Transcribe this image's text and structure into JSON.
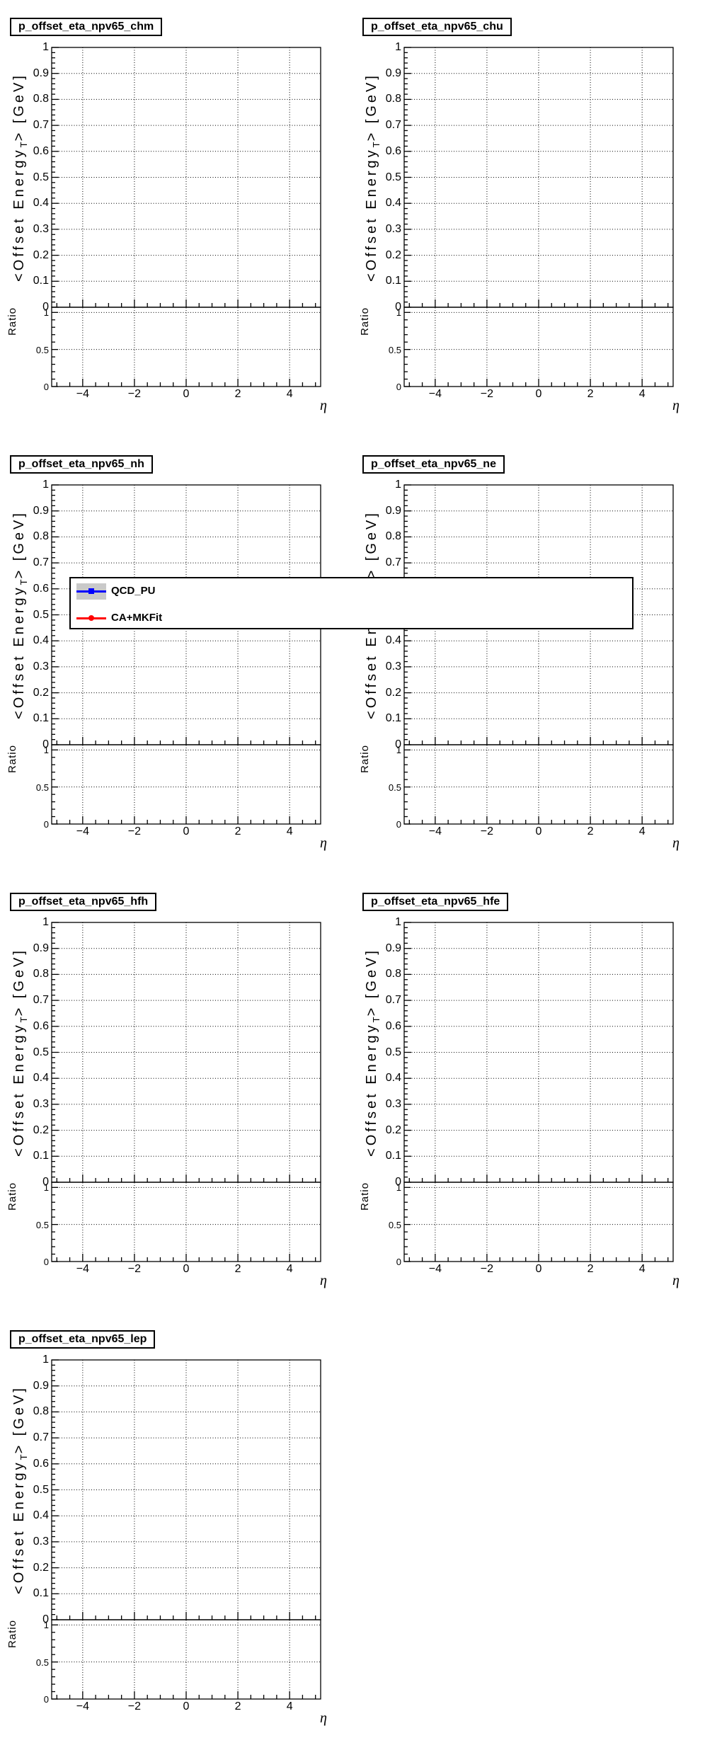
{
  "axis_titles": {
    "ylabel_pre": "<Offset Energy",
    "ylabel_sub": "T",
    "ylabel_post": "> [GeV]",
    "ratio_label": "Ratio",
    "xlabel": "η"
  },
  "legend": {
    "entries": [
      {
        "label": "QCD_PU",
        "line_color": "#0000ff",
        "marker": "square",
        "band": true,
        "band_color": "#c9c9c9"
      },
      {
        "label": "CA+MKFit",
        "line_color": "#ff0000",
        "marker": "circle",
        "band": false,
        "band_color": null
      }
    ]
  },
  "chart_data": [
    {
      "type": "line",
      "title": "p_offset_eta_npv65_chm",
      "xlabel": "η",
      "ylabel": "<Offset Energy_T> [GeV]",
      "ratio_label": "Ratio",
      "xlim": [
        -5.2,
        5.2
      ],
      "ylim": [
        0,
        1
      ],
      "grid": true,
      "xticks": [
        -4,
        -2,
        0,
        2,
        4
      ],
      "xtick_labels": [
        "−4",
        "−2",
        "0",
        "2",
        "4"
      ],
      "x_minor_step": 0.5,
      "yticks": [
        0,
        0.1,
        0.2,
        0.3,
        0.4,
        0.5,
        0.6,
        0.7,
        0.8,
        0.9,
        1
      ],
      "ytick_labels": [
        "0",
        "0.1",
        "0.2",
        "0.3",
        "0.4",
        "0.5",
        "0.6",
        "0.7",
        "0.8",
        "0.9",
        "1"
      ],
      "y_minor_step": 0.02,
      "ratio": {
        "ylim": [
          0,
          1.07
        ],
        "yticks": [
          0,
          0.5,
          1
        ],
        "ytick_labels": [
          "0",
          "0.5",
          "1"
        ],
        "minor_step": 0.1,
        "gridlines": [
          0.5,
          1
        ]
      },
      "series": [
        {
          "name": "QCD_PU",
          "color": "#0000ff",
          "marker": "square",
          "band_color": "#c9c9c9",
          "points": []
        },
        {
          "name": "CA+MKFit",
          "color": "#ff0000",
          "marker": "circle",
          "points": []
        }
      ]
    },
    {
      "type": "line",
      "title": "p_offset_eta_npv65_chu",
      "xlabel": "η",
      "ylabel": "<Offset Energy_T> [GeV]",
      "ratio_label": "Ratio",
      "xlim": [
        -5.2,
        5.2
      ],
      "ylim": [
        0,
        1
      ],
      "grid": true,
      "xticks": [
        -4,
        -2,
        0,
        2,
        4
      ],
      "xtick_labels": [
        "−4",
        "−2",
        "0",
        "2",
        "4"
      ],
      "x_minor_step": 0.5,
      "yticks": [
        0,
        0.1,
        0.2,
        0.3,
        0.4,
        0.5,
        0.6,
        0.7,
        0.8,
        0.9,
        1
      ],
      "ytick_labels": [
        "0",
        "0.1",
        "0.2",
        "0.3",
        "0.4",
        "0.5",
        "0.6",
        "0.7",
        "0.8",
        "0.9",
        "1"
      ],
      "y_minor_step": 0.02,
      "ratio": {
        "ylim": [
          0,
          1.07
        ],
        "yticks": [
          0,
          0.5,
          1
        ],
        "ytick_labels": [
          "0",
          "0.5",
          "1"
        ],
        "minor_step": 0.1,
        "gridlines": [
          0.5,
          1
        ]
      },
      "series": [
        {
          "name": "QCD_PU",
          "color": "#0000ff",
          "marker": "square",
          "band_color": "#c9c9c9",
          "points": []
        },
        {
          "name": "CA+MKFit",
          "color": "#ff0000",
          "marker": "circle",
          "points": []
        }
      ]
    },
    {
      "type": "line",
      "title": "p_offset_eta_npv65_nh",
      "xlabel": "η",
      "ylabel": "<Offset Energy_T> [GeV]",
      "ratio_label": "Ratio",
      "xlim": [
        -5.2,
        5.2
      ],
      "ylim": [
        0,
        1
      ],
      "grid": true,
      "xticks": [
        -4,
        -2,
        0,
        2,
        4
      ],
      "xtick_labels": [
        "−4",
        "−2",
        "0",
        "2",
        "4"
      ],
      "x_minor_step": 0.5,
      "yticks": [
        0,
        0.1,
        0.2,
        0.3,
        0.4,
        0.5,
        0.6,
        0.7,
        0.8,
        0.9,
        1
      ],
      "ytick_labels": [
        "0",
        "0.1",
        "0.2",
        "0.3",
        "0.4",
        "0.5",
        "0.6",
        "0.7",
        "0.8",
        "0.9",
        "1"
      ],
      "y_minor_step": 0.02,
      "ratio": {
        "ylim": [
          0,
          1.07
        ],
        "yticks": [
          0,
          0.5,
          1
        ],
        "ytick_labels": [
          "0",
          "0.5",
          "1"
        ],
        "minor_step": 0.1,
        "gridlines": [
          0.5,
          1
        ]
      },
      "series": [
        {
          "name": "QCD_PU",
          "color": "#0000ff",
          "marker": "square",
          "band_color": "#c9c9c9",
          "points": []
        },
        {
          "name": "CA+MKFit",
          "color": "#ff0000",
          "marker": "circle",
          "points": []
        }
      ]
    },
    {
      "type": "line",
      "title": "p_offset_eta_npv65_ne",
      "xlabel": "η",
      "ylabel": "<Offset Energy_T> [GeV]",
      "ratio_label": "Ratio",
      "xlim": [
        -5.2,
        5.2
      ],
      "ylim": [
        0,
        1
      ],
      "grid": true,
      "xticks": [
        -4,
        -2,
        0,
        2,
        4
      ],
      "xtick_labels": [
        "−4",
        "−2",
        "0",
        "2",
        "4"
      ],
      "x_minor_step": 0.5,
      "yticks": [
        0,
        0.1,
        0.2,
        0.3,
        0.4,
        0.5,
        0.6,
        0.7,
        0.8,
        0.9,
        1
      ],
      "ytick_labels": [
        "0",
        "0.1",
        "0.2",
        "0.3",
        "0.4",
        "0.5",
        "0.6",
        "0.7",
        "0.8",
        "0.9",
        "1"
      ],
      "y_minor_step": 0.02,
      "ratio": {
        "ylim": [
          0,
          1.07
        ],
        "yticks": [
          0,
          0.5,
          1
        ],
        "ytick_labels": [
          "0",
          "0.5",
          "1"
        ],
        "minor_step": 0.1,
        "gridlines": [
          0.5,
          1
        ]
      },
      "series": [
        {
          "name": "QCD_PU",
          "color": "#0000ff",
          "marker": "square",
          "band_color": "#c9c9c9",
          "points": []
        },
        {
          "name": "CA+MKFit",
          "color": "#ff0000",
          "marker": "circle",
          "points": []
        }
      ]
    },
    {
      "type": "line",
      "title": "p_offset_eta_npv65_hfh",
      "xlabel": "η",
      "ylabel": "<Offset Energy_T> [GeV]",
      "ratio_label": "Ratio",
      "xlim": [
        -5.2,
        5.2
      ],
      "ylim": [
        0,
        1
      ],
      "grid": true,
      "xticks": [
        -4,
        -2,
        0,
        2,
        4
      ],
      "xtick_labels": [
        "−4",
        "−2",
        "0",
        "2",
        "4"
      ],
      "x_minor_step": 0.5,
      "yticks": [
        0,
        0.1,
        0.2,
        0.3,
        0.4,
        0.5,
        0.6,
        0.7,
        0.8,
        0.9,
        1
      ],
      "ytick_labels": [
        "0",
        "0.1",
        "0.2",
        "0.3",
        "0.4",
        "0.5",
        "0.6",
        "0.7",
        "0.8",
        "0.9",
        "1"
      ],
      "y_minor_step": 0.02,
      "ratio": {
        "ylim": [
          0,
          1.07
        ],
        "yticks": [
          0,
          0.5,
          1
        ],
        "ytick_labels": [
          "0",
          "0.5",
          "1"
        ],
        "minor_step": 0.1,
        "gridlines": [
          0.5,
          1
        ]
      },
      "series": [
        {
          "name": "QCD_PU",
          "color": "#0000ff",
          "marker": "square",
          "band_color": "#c9c9c9",
          "points": []
        },
        {
          "name": "CA+MKFit",
          "color": "#ff0000",
          "marker": "circle",
          "points": []
        }
      ]
    },
    {
      "type": "line",
      "title": "p_offset_eta_npv65_hfe",
      "xlabel": "η",
      "ylabel": "<Offset Energy_T> [GeV]",
      "ratio_label": "Ratio",
      "xlim": [
        -5.2,
        5.2
      ],
      "ylim": [
        0,
        1
      ],
      "grid": true,
      "xticks": [
        -4,
        -2,
        0,
        2,
        4
      ],
      "xtick_labels": [
        "−4",
        "−2",
        "0",
        "2",
        "4"
      ],
      "x_minor_step": 0.5,
      "yticks": [
        0,
        0.1,
        0.2,
        0.3,
        0.4,
        0.5,
        0.6,
        0.7,
        0.8,
        0.9,
        1
      ],
      "ytick_labels": [
        "0",
        "0.1",
        "0.2",
        "0.3",
        "0.4",
        "0.5",
        "0.6",
        "0.7",
        "0.8",
        "0.9",
        "1"
      ],
      "y_minor_step": 0.02,
      "ratio": {
        "ylim": [
          0,
          1.07
        ],
        "yticks": [
          0,
          0.5,
          1
        ],
        "ytick_labels": [
          "0",
          "0.5",
          "1"
        ],
        "minor_step": 0.1,
        "gridlines": [
          0.5,
          1
        ]
      },
      "series": [
        {
          "name": "QCD_PU",
          "color": "#0000ff",
          "marker": "square",
          "band_color": "#c9c9c9",
          "points": []
        },
        {
          "name": "CA+MKFit",
          "color": "#ff0000",
          "marker": "circle",
          "points": []
        }
      ]
    },
    {
      "type": "line",
      "title": "p_offset_eta_npv65_lep",
      "xlabel": "η",
      "ylabel": "<Offset Energy_T> [GeV]",
      "ratio_label": "Ratio",
      "xlim": [
        -5.2,
        5.2
      ],
      "ylim": [
        0,
        1
      ],
      "grid": true,
      "xticks": [
        -4,
        -2,
        0,
        2,
        4
      ],
      "xtick_labels": [
        "−4",
        "−2",
        "0",
        "2",
        "4"
      ],
      "x_minor_step": 0.5,
      "yticks": [
        0,
        0.1,
        0.2,
        0.3,
        0.4,
        0.5,
        0.6,
        0.7,
        0.8,
        0.9,
        1
      ],
      "ytick_labels": [
        "0",
        "0.1",
        "0.2",
        "0.3",
        "0.4",
        "0.5",
        "0.6",
        "0.7",
        "0.8",
        "0.9",
        "1"
      ],
      "y_minor_step": 0.02,
      "ratio": {
        "ylim": [
          0,
          1.07
        ],
        "yticks": [
          0,
          0.5,
          1
        ],
        "ytick_labels": [
          "0",
          "0.5",
          "1"
        ],
        "minor_step": 0.1,
        "gridlines": [
          0.5,
          1
        ]
      },
      "series": [
        {
          "name": "QCD_PU",
          "color": "#0000ff",
          "marker": "square",
          "band_color": "#c9c9c9",
          "points": []
        },
        {
          "name": "CA+MKFit",
          "color": "#ff0000",
          "marker": "circle",
          "points": []
        }
      ]
    }
  ]
}
